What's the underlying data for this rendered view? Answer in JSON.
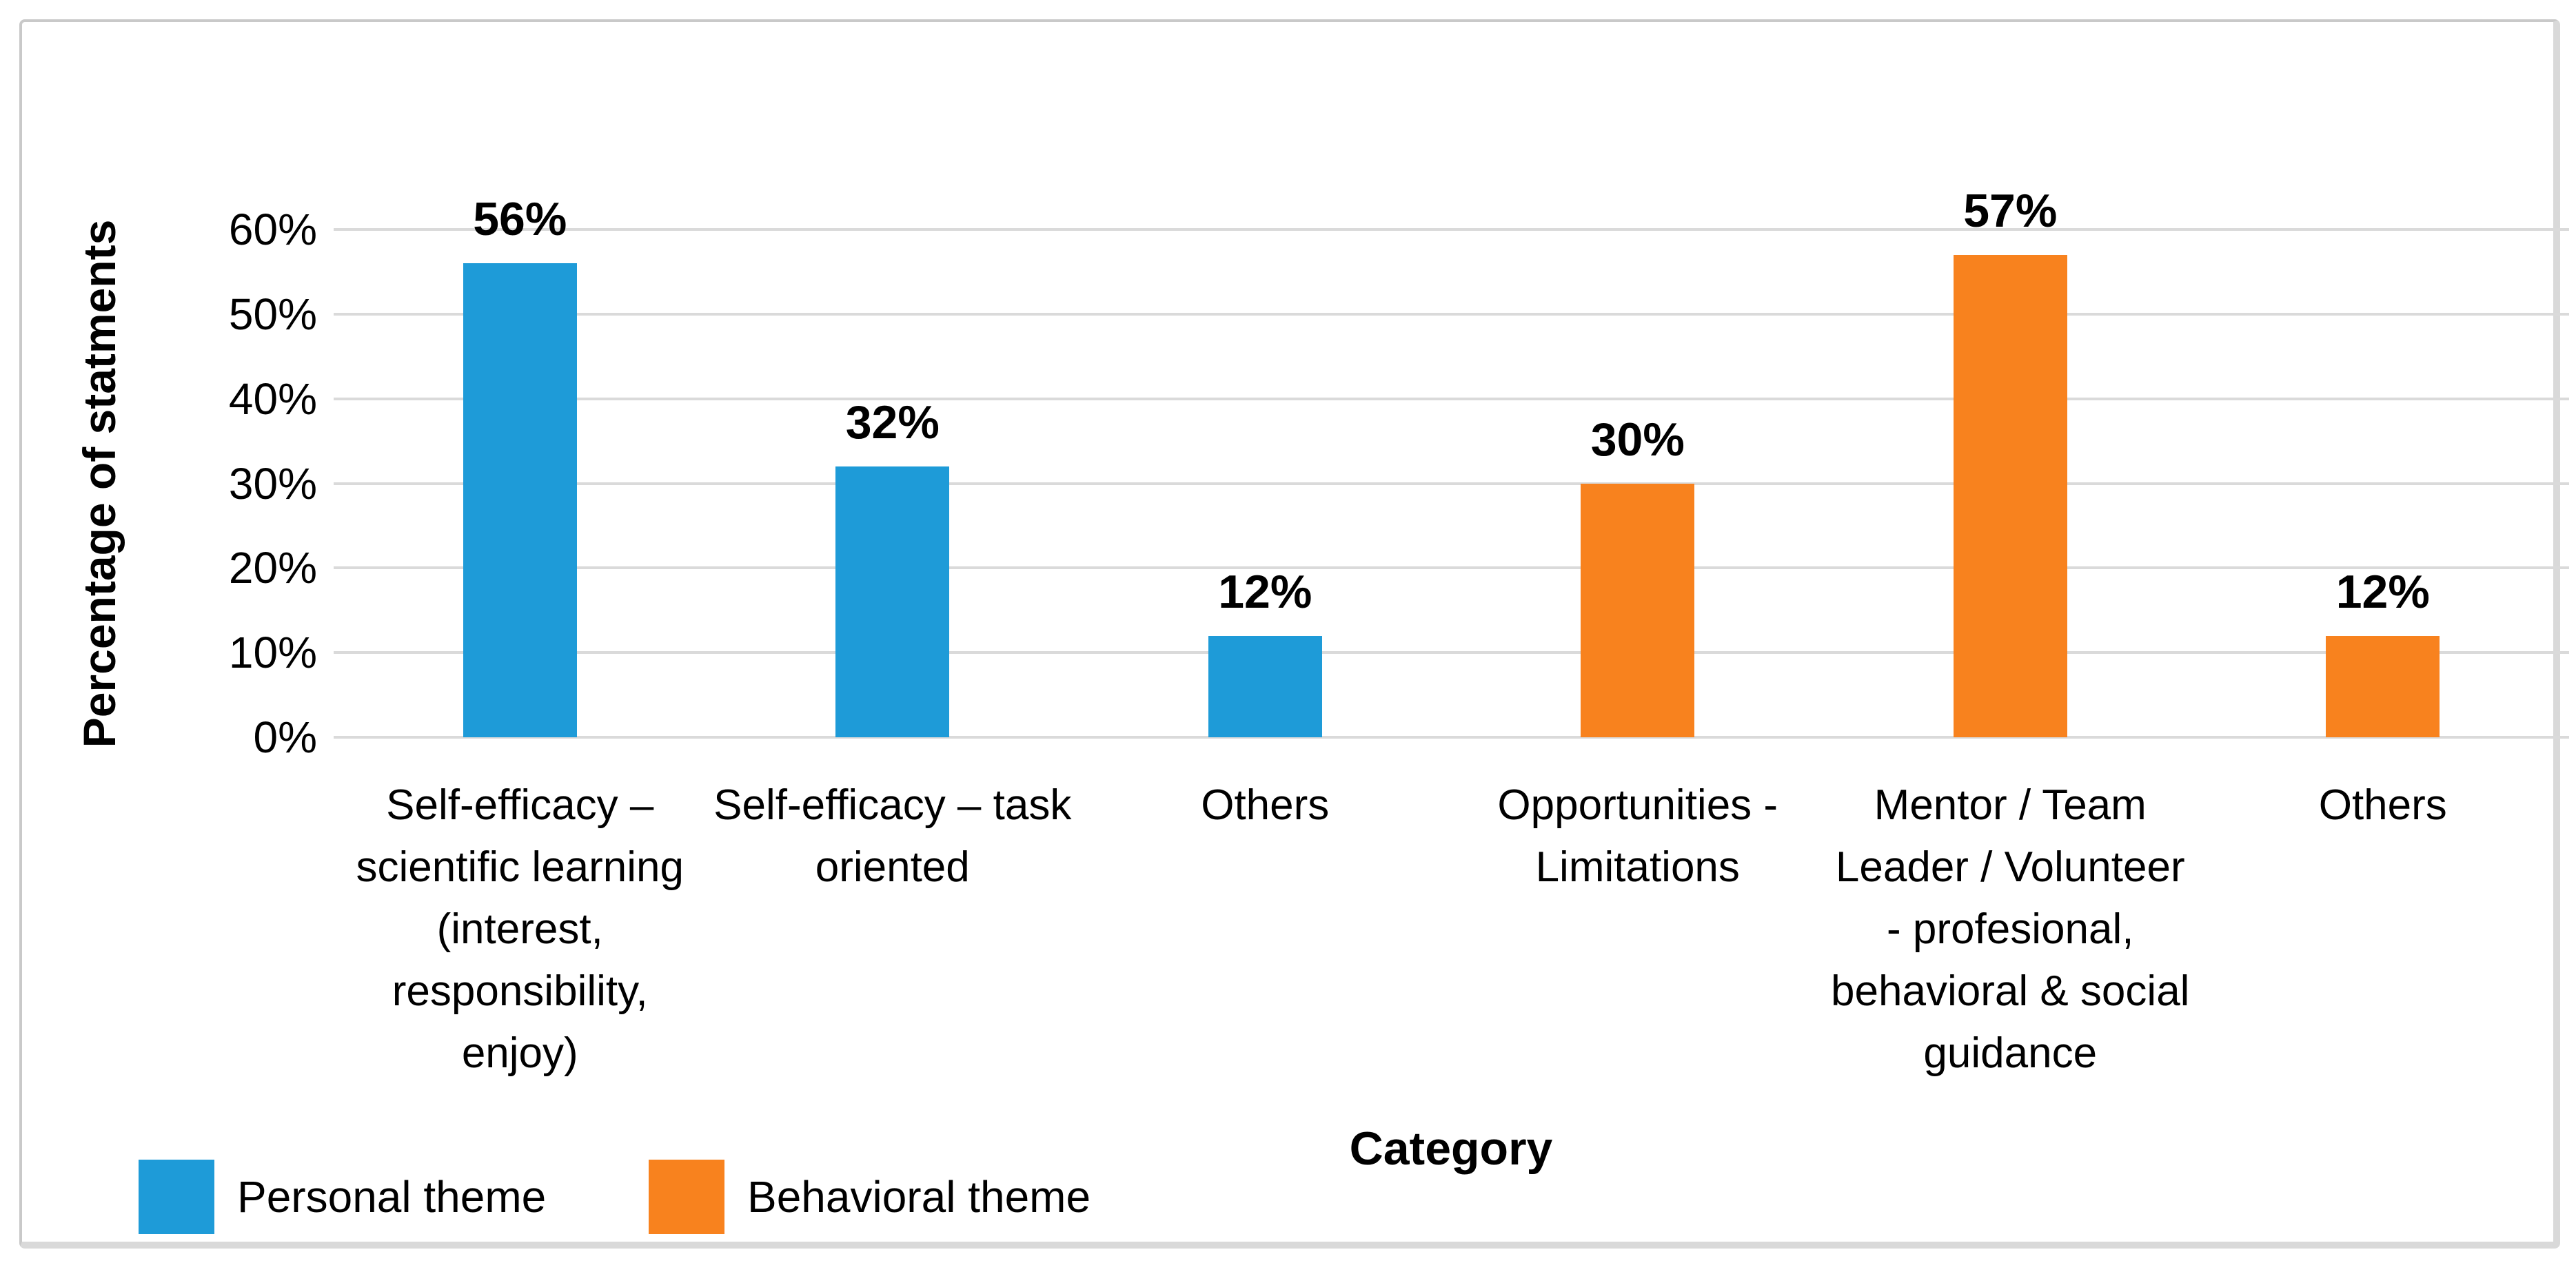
{
  "chart_data": {
    "type": "bar",
    "title": "",
    "xlabel": "Category",
    "ylabel": "Percentage of statments",
    "ylim": [
      0,
      60
    ],
    "ytick_step": 10,
    "yticks": [
      "0%",
      "10%",
      "20%",
      "30%",
      "40%",
      "50%",
      "60%"
    ],
    "grid": true,
    "gridline_color": "#dadada",
    "legend_position": "bottom-left",
    "categories": [
      "Self-efficacy – scientific learning (interest, responsibility, enjoy)",
      "Self-efficacy – task oriented",
      "Others",
      "Opportunities - Limitations",
      "Mentor / Team Leader / Volunteer - profesional, behavioral & social guidance",
      "Others"
    ],
    "category_lines": [
      [
        "Self-efficacy –",
        "scientific learning",
        "(interest,",
        "responsibility,",
        "enjoy)"
      ],
      [
        "Self-efficacy – task",
        "oriented"
      ],
      [
        "Others"
      ],
      [
        "Opportunities -",
        "Limitations"
      ],
      [
        "Mentor / Team",
        "Leader / Volunteer",
        "- profesional,",
        "behavioral & social",
        "guidance"
      ],
      [
        "Others"
      ]
    ],
    "series": [
      {
        "name": "Personal theme",
        "color": "#1E9BD8",
        "values": [
          56,
          32,
          12,
          null,
          null,
          null
        ]
      },
      {
        "name": "Behavioral theme",
        "color": "#F8821E",
        "values": [
          null,
          null,
          null,
          30,
          57,
          12
        ]
      }
    ],
    "bar_labels": [
      "56%",
      "32%",
      "12%",
      "30%",
      "57%",
      "12%"
    ]
  }
}
